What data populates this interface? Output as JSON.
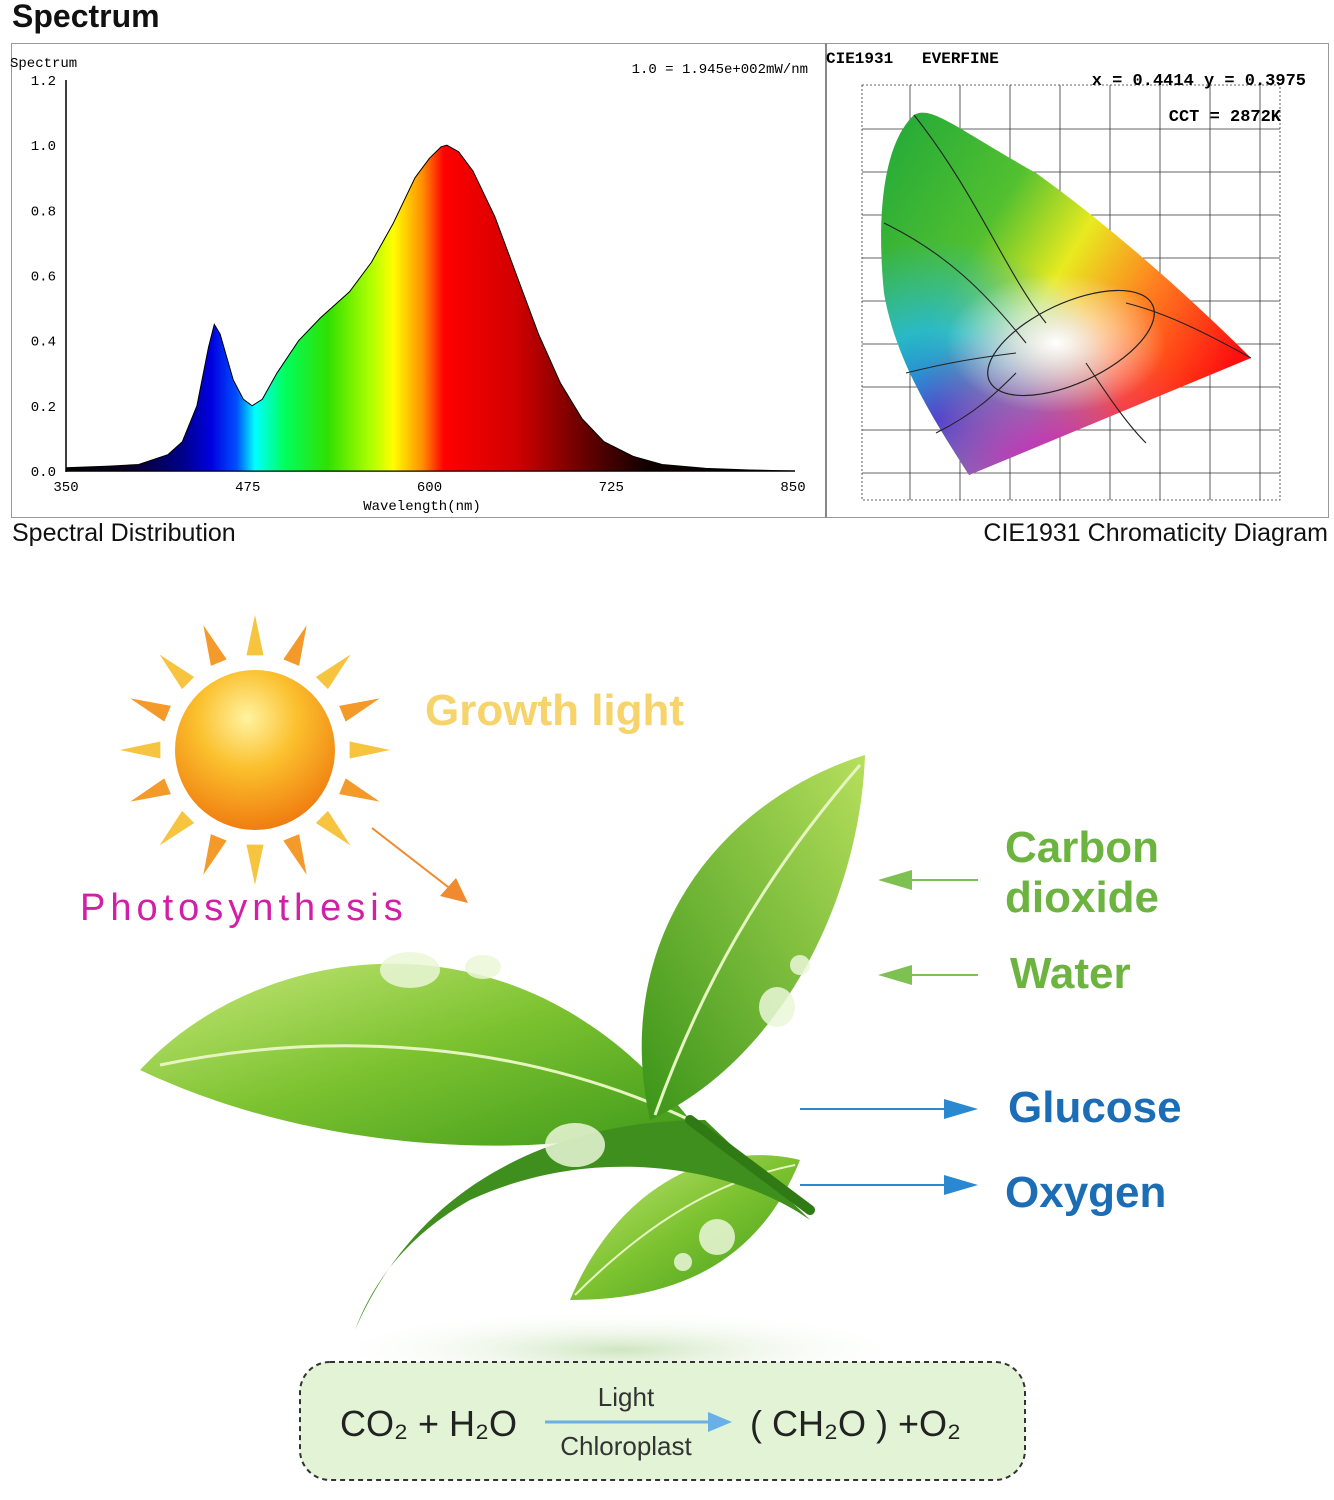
{
  "title": "Spectrum",
  "captions": {
    "left": "Spectral Distribution",
    "right": "CIE1931 Chromaticity Diagram"
  },
  "chart_data": {
    "type": "area",
    "title": "Spectrum",
    "annotation": "1.0 = 1.945e+002mW/nm",
    "xlabel": "Wavelength(nm)",
    "ylabel": "",
    "xlim": [
      350,
      850
    ],
    "ylim": [
      0,
      1.2
    ],
    "xticks": [
      "350",
      "475",
      "600",
      "725",
      "850"
    ],
    "yticks": [
      "0.0",
      "0.2",
      "0.4",
      "0.6",
      "0.8",
      "1.0",
      "1.2"
    ],
    "grid": false,
    "fill": "visible-spectrum color gradient",
    "x": [
      350,
      380,
      400,
      420,
      430,
      440,
      448,
      452,
      456,
      465,
      472,
      478,
      485,
      495,
      510,
      525,
      545,
      560,
      575,
      590,
      600,
      608,
      612,
      620,
      630,
      645,
      660,
      675,
      690,
      705,
      720,
      740,
      760,
      790,
      820,
      850
    ],
    "y": [
      0.01,
      0.015,
      0.02,
      0.05,
      0.09,
      0.2,
      0.38,
      0.45,
      0.42,
      0.28,
      0.22,
      0.2,
      0.22,
      0.3,
      0.4,
      0.47,
      0.55,
      0.64,
      0.76,
      0.9,
      0.96,
      0.995,
      1.0,
      0.98,
      0.92,
      0.78,
      0.6,
      0.42,
      0.27,
      0.16,
      0.09,
      0.045,
      0.02,
      0.008,
      0.003,
      0.0
    ]
  },
  "cie": {
    "header": "CIE1931   EVERFINE",
    "coords": "x = 0.4414  y = 0.3975",
    "cct": "CCT = 2872K"
  },
  "diagram": {
    "growth_light": "Growth light",
    "photosynthesis": "Photosynthesis",
    "inputs": [
      "Carbon",
      "dioxide",
      "Water"
    ],
    "outputs": [
      "Glucose",
      "Oxygen"
    ],
    "colors": {
      "growth": "#f6d36b",
      "photo": "#d21fa8",
      "input": "#6cb43f",
      "output": "#1b6db5",
      "arrow_in": "#7cc152",
      "arrow_out": "#2a88d0"
    },
    "equation": {
      "left": "CO₂ + H₂O",
      "above": "Light",
      "below": "Chloroplast",
      "right": "( CH₂O ) +O₂"
    }
  }
}
